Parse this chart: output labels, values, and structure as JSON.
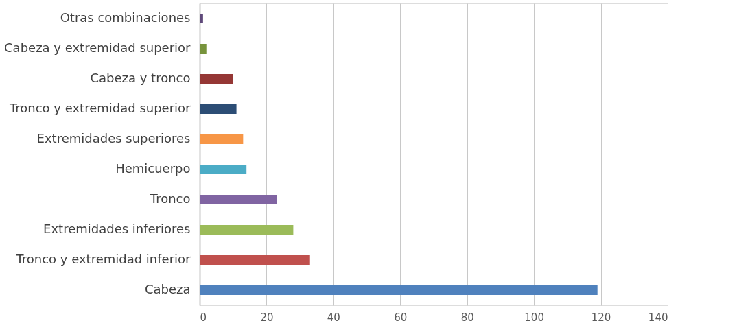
{
  "chart_data": {
    "type": "bar",
    "orientation": "horizontal",
    "categories": [
      "Otras combinaciones",
      "Cabeza y extremidad superior",
      "Cabeza y tronco",
      "Tronco y extremidad superior",
      "Extremidades superiores",
      "Hemicuerpo",
      "Tronco",
      "Extremidades inferiores",
      "Tronco y extremidad inferior",
      "Cabeza"
    ],
    "values": [
      1,
      2,
      10,
      11,
      13,
      14,
      23,
      28,
      33,
      119
    ],
    "colors": [
      "#5f497a",
      "#77933c",
      "#953735",
      "#2c4d75",
      "#f79646",
      "#4bacc6",
      "#8064a2",
      "#9bbb59",
      "#c0504d",
      "#4f81bd"
    ],
    "xlim": [
      0,
      140
    ],
    "xticks": [
      0,
      20,
      40,
      60,
      80,
      100,
      120,
      140
    ],
    "grid": "x",
    "legend": false
  }
}
